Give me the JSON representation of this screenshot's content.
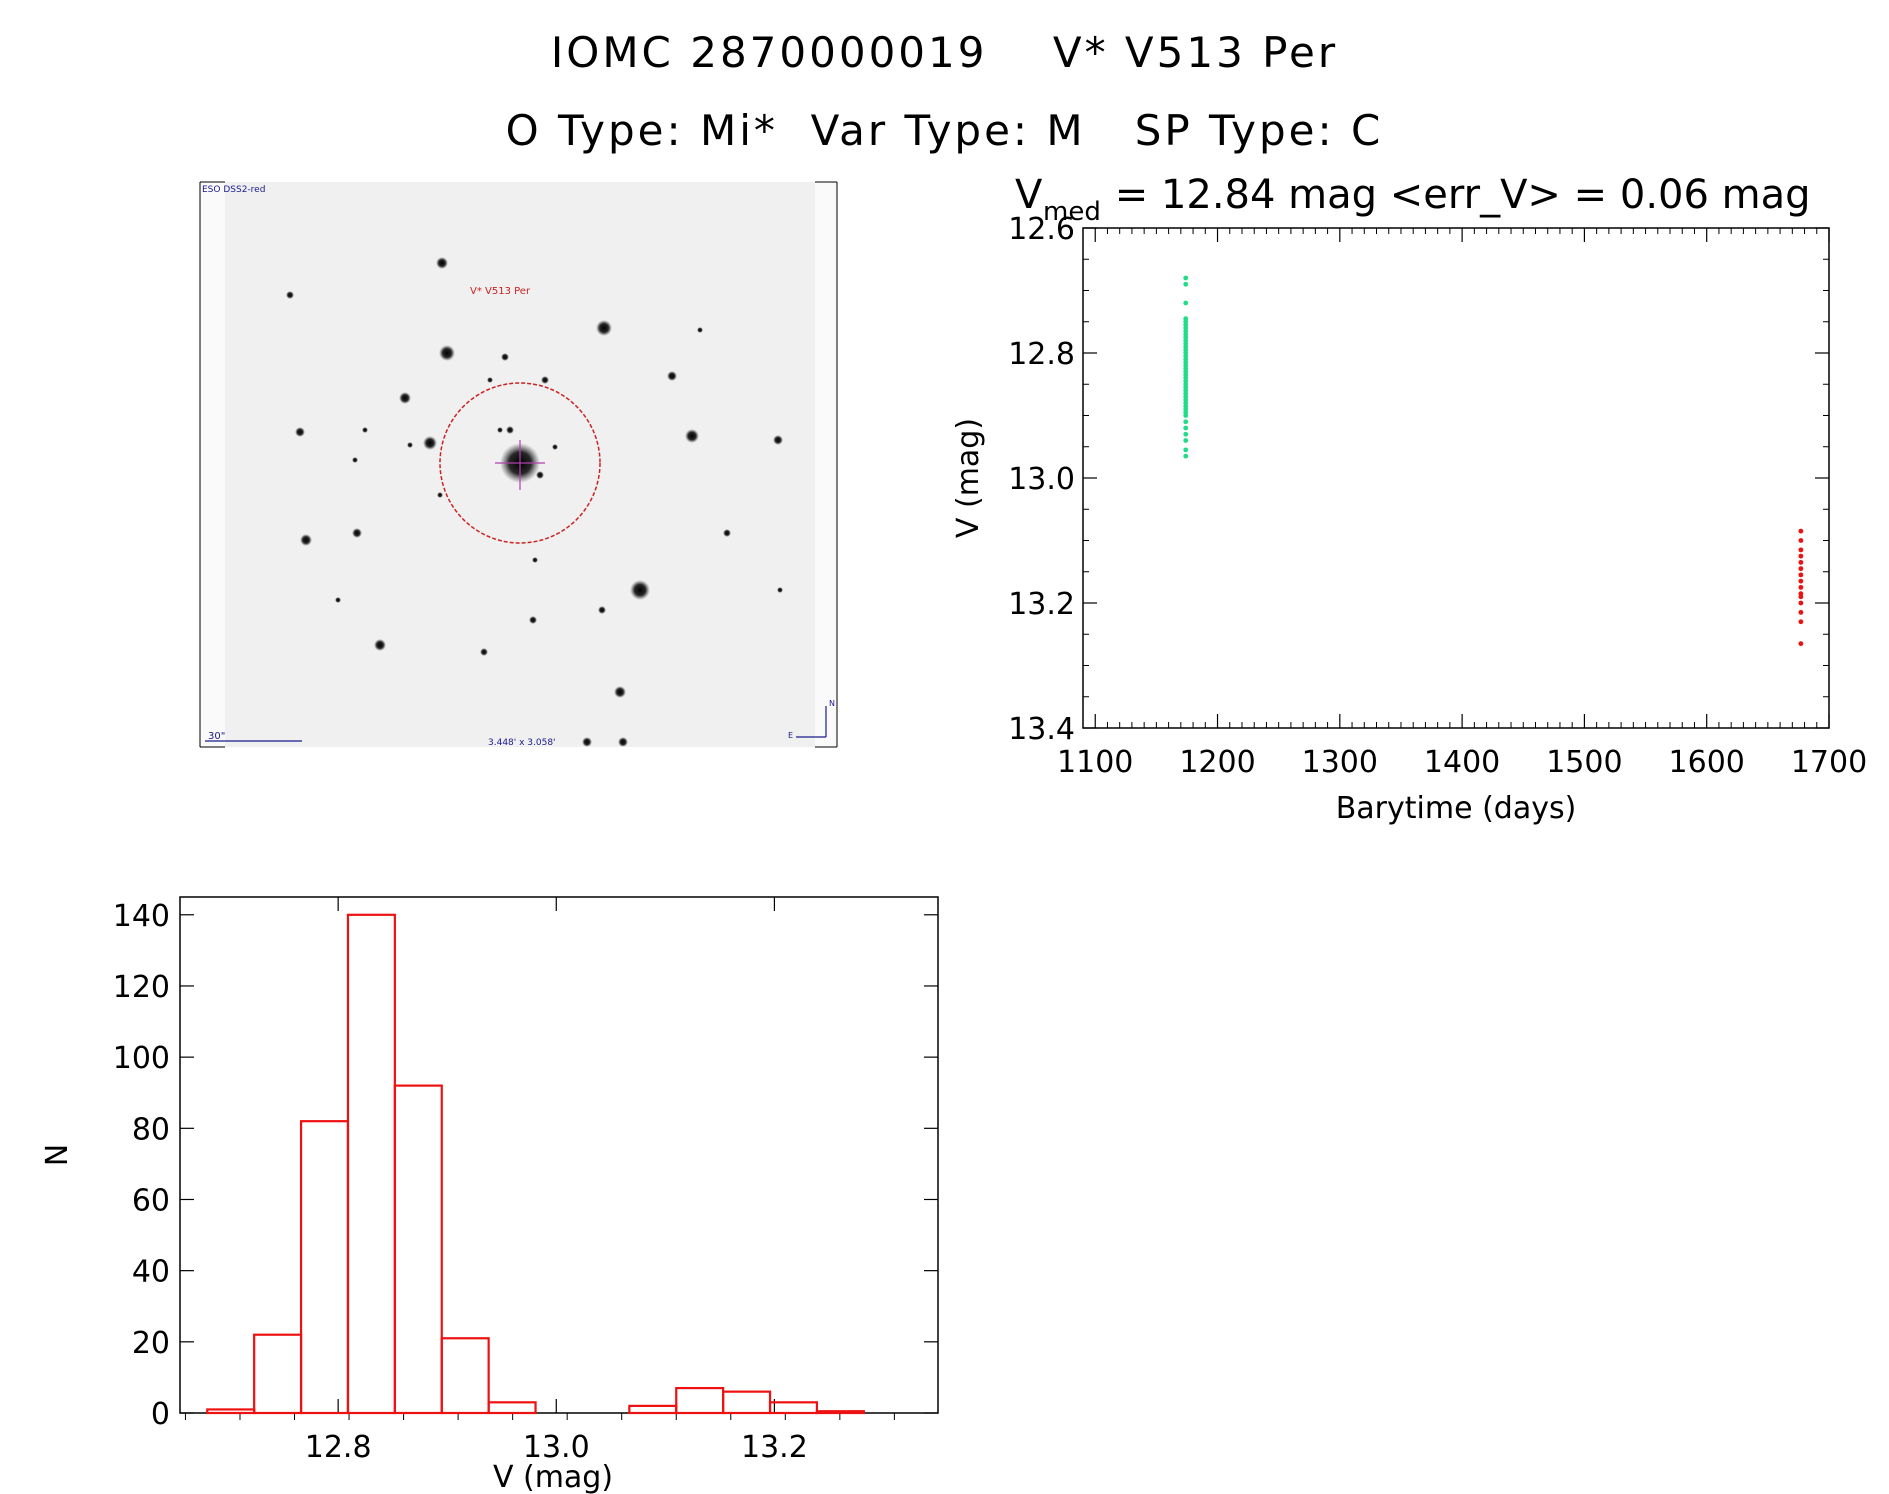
{
  "header": {
    "title_line1": "IOMC 2870000019    V* V513 Per",
    "title_line2": "O Type: Mi*  Var Type: M   SP Type: C"
  },
  "image_panel": {
    "survey_label": "ESO DSS2-red",
    "target_label": "V* V513 Per",
    "scale_label": "30\"",
    "fov_label": "3.448' x 3.058'",
    "compass_n": "N",
    "compass_e": "E",
    "colors": {
      "circle": "#cc2222",
      "crosshair": "#b040b0",
      "annotation": "#1a1a8c"
    }
  },
  "chart_data": [
    {
      "type": "scatter",
      "title_main": "V",
      "title_sub": "med",
      "title_rest": " = 12.84 mag <err_V> = 0.06 mag",
      "xlabel": "Barytime (days)",
      "ylabel": "V (mag)",
      "xlim": [
        1090,
        1700
      ],
      "ylim": [
        13.4,
        12.6
      ],
      "y_inverted": true,
      "xticks": [
        1100,
        1200,
        1300,
        1400,
        1500,
        1600,
        1700
      ],
      "yticks": [
        12.6,
        12.8,
        13.0,
        13.2,
        13.4
      ],
      "xtick_labels": [
        "1100",
        "1200",
        "1300",
        "1400",
        "1500",
        "1600",
        "1700"
      ],
      "ytick_labels": [
        "12.6",
        "12.8",
        "13.0",
        "13.2",
        "13.4"
      ],
      "series": [
        {
          "color": "#22dd88",
          "x": 1174,
          "y": [
            12.68,
            12.69,
            12.72,
            12.745,
            12.75,
            12.755,
            12.76,
            12.765,
            12.77,
            12.775,
            12.78,
            12.785,
            12.79,
            12.795,
            12.8,
            12.805,
            12.81,
            12.815,
            12.82,
            12.825,
            12.83,
            12.835,
            12.84,
            12.845,
            12.85,
            12.855,
            12.86,
            12.865,
            12.87,
            12.875,
            12.88,
            12.885,
            12.89,
            12.895,
            12.9,
            12.91,
            12.92,
            12.93,
            12.94,
            12.955,
            12.965
          ]
        },
        {
          "color": "#ee1111",
          "x": 1677,
          "y": [
            13.085,
            13.1,
            13.115,
            13.125,
            13.135,
            13.145,
            13.155,
            13.165,
            13.175,
            13.185,
            13.19,
            13.2,
            13.215,
            13.23,
            13.265
          ]
        }
      ]
    },
    {
      "type": "bar",
      "histogram": true,
      "xlabel": "V (mag)",
      "ylabel": "N",
      "xlim": [
        12.655,
        13.35
      ],
      "ylim": [
        0,
        145
      ],
      "xticks": [
        12.8,
        13.0,
        13.2
      ],
      "xtick_labels": [
        "12.8",
        "13.0",
        "13.2"
      ],
      "yticks": [
        0,
        20,
        40,
        60,
        80,
        100,
        120,
        140
      ],
      "ytick_labels": [
        "0",
        "20",
        "40",
        "60",
        "80",
        "100",
        "120",
        "140"
      ],
      "bin_edges": [
        12.68,
        12.723,
        12.766,
        12.809,
        12.852,
        12.895,
        12.938,
        12.981,
        13.024,
        13.067,
        13.11,
        13.153,
        13.196,
        13.239,
        13.282
      ],
      "values": [
        1,
        22,
        82,
        140,
        92,
        21,
        3,
        0,
        0,
        2,
        7,
        6,
        3,
        0.5
      ],
      "color": "#ee1111"
    }
  ]
}
